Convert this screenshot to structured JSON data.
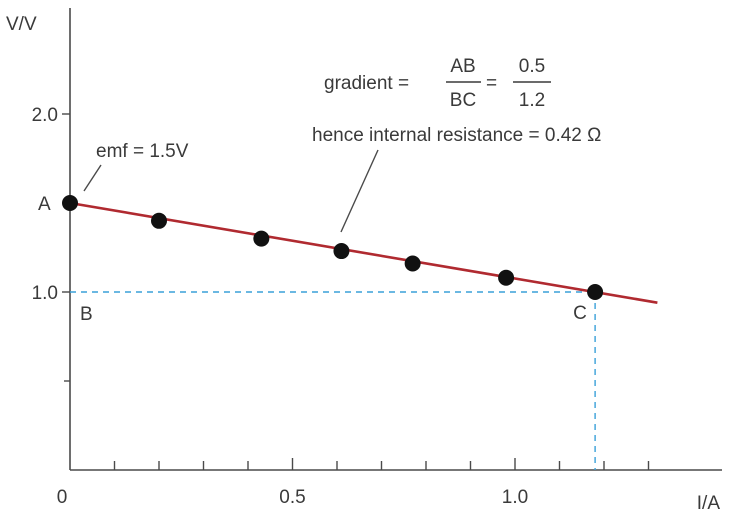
{
  "chart_data": {
    "type": "scatter",
    "xlabel": "I/A",
    "ylabel": "V/V",
    "xlim": [
      0,
      1.45
    ],
    "ylim": [
      0,
      2.3
    ],
    "x_tick_labels": [
      {
        "value": 0,
        "label": "0"
      },
      {
        "value": 0.5,
        "label": "0.5"
      },
      {
        "value": 1.0,
        "label": "1.0"
      }
    ],
    "x_minor_ticks": [
      0.1,
      0.2,
      0.3,
      0.4,
      0.6,
      0.7,
      0.8,
      0.9,
      1.1,
      1.2,
      1.3
    ],
    "y_tick_labels": [
      {
        "value": 1.0,
        "label": "1.0"
      },
      {
        "value": 2.0,
        "label": "2.0"
      }
    ],
    "y_minor_ticks": [
      0.5,
      1.5
    ],
    "series": [
      {
        "points": [
          {
            "x": 0.0,
            "y": 1.5
          },
          {
            "x": 0.2,
            "y": 1.4
          },
          {
            "x": 0.43,
            "y": 1.3
          },
          {
            "x": 0.61,
            "y": 1.23
          },
          {
            "x": 0.77,
            "y": 1.16
          },
          {
            "x": 0.98,
            "y": 1.08
          },
          {
            "x": 1.18,
            "y": 1.0
          }
        ]
      }
    ],
    "best_fit_line": {
      "x": [
        0.0,
        1.32
      ],
      "y": [
        1.5,
        0.94
      ]
    },
    "guide_lines": {
      "horizontal": {
        "y": 1.0,
        "x": [
          0.0,
          1.18
        ]
      },
      "vertical": {
        "x": 1.18,
        "y": [
          0.0,
          1.0
        ]
      }
    },
    "point_labels": [
      {
        "text": "A",
        "x": 0.0,
        "y": 1.5
      },
      {
        "text": "B",
        "x": 0.0,
        "y": 1.0
      },
      {
        "text": "C",
        "x": 1.18,
        "y": 1.0
      }
    ],
    "annotations": {
      "emf": "emf = 1.5V",
      "gradient_prefix": "gradient =",
      "gradient_numerator": "AB",
      "gradient_denominator": "BC",
      "gradient_equals": "=",
      "value_numerator": "0.5",
      "value_denominator": "1.2",
      "resistance": "hence internal resistance = 0.42 Ω"
    }
  }
}
